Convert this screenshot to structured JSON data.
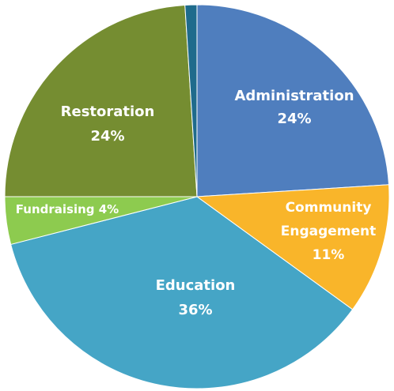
{
  "chart_data": {
    "type": "pie",
    "title": "",
    "slices": [
      {
        "label": "Administration",
        "value": 24,
        "value_label": "24%",
        "color": "#4F7EBE"
      },
      {
        "label": "Community Engagement",
        "value": 11,
        "value_label": "11%",
        "color": "#F9B52A"
      },
      {
        "label": "Education",
        "value": 36,
        "value_label": "36%",
        "color": "#45A5C6"
      },
      {
        "label": "Fundraising",
        "value": 4,
        "value_label": "4%",
        "color": "#8DCB4F"
      },
      {
        "label": "Restoration",
        "value": 24,
        "value_label": "24%",
        "color": "#758D31"
      },
      {
        "label": "",
        "value": 1,
        "value_label": "",
        "color": "#1F6B8C"
      }
    ],
    "start_angle_deg": 0,
    "direction": "clockwise",
    "legend": "none"
  }
}
